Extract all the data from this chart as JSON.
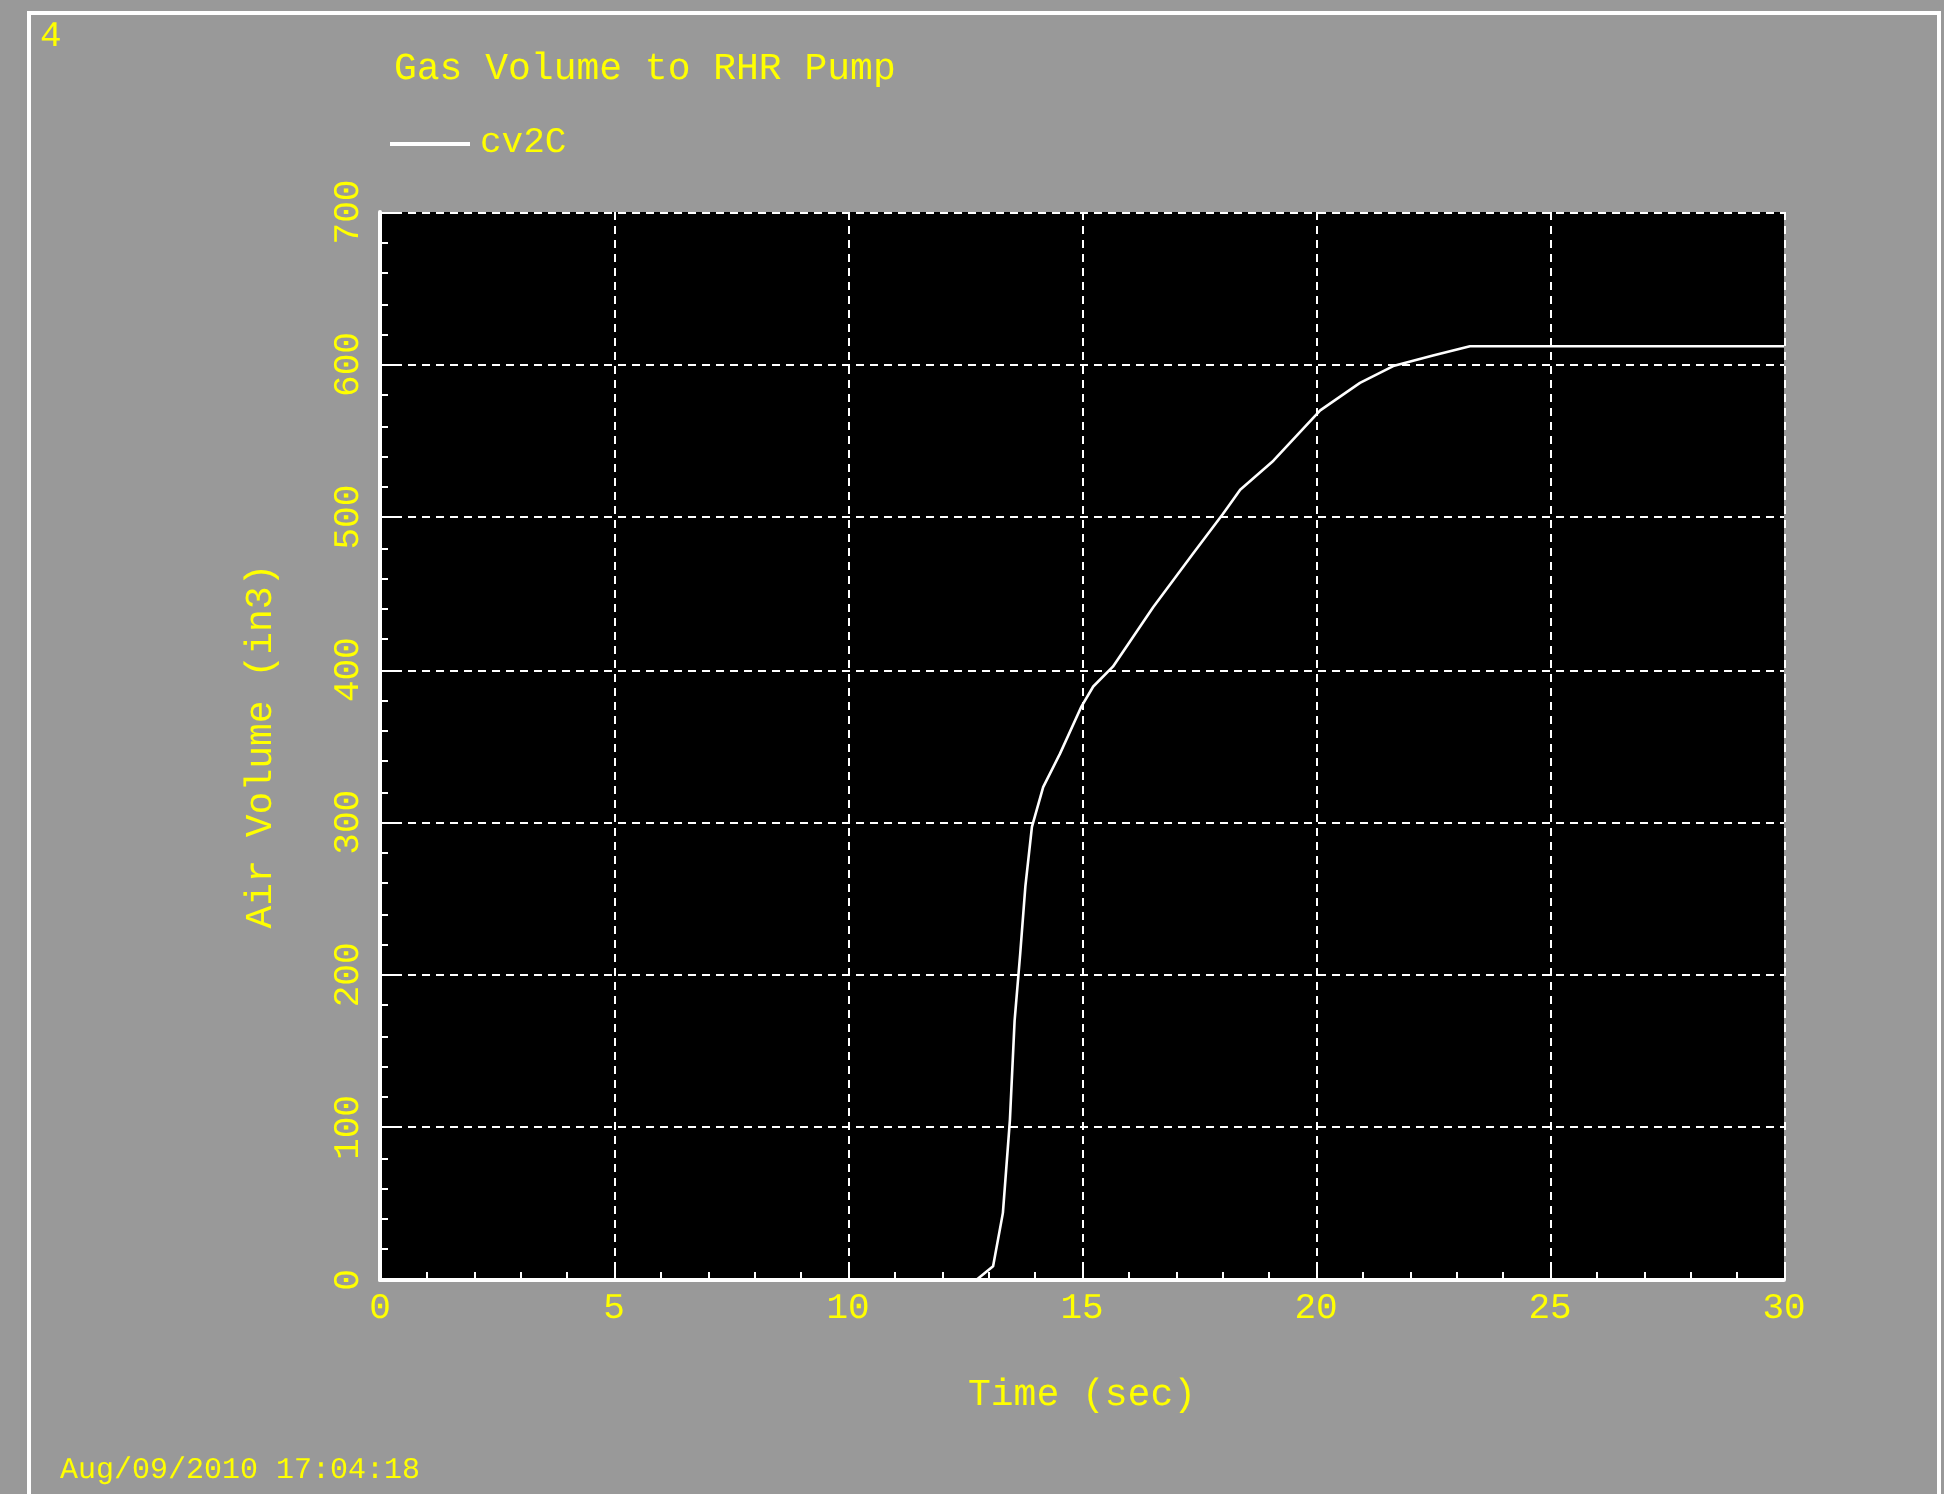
{
  "chart_data": {
    "type": "line",
    "title": "Gas Volume to RHR Pump",
    "xlabel": "Time (sec)",
    "ylabel": "Air Volume (in3)",
    "annotations": [
      "4",
      "Aug/09/2010 17:04:18"
    ],
    "series": [
      {
        "name": "cv2C",
        "color": "#ffffff",
        "x": [
          0,
          12.74,
          13.1,
          13.31,
          13.46,
          13.56,
          13.68,
          13.79,
          13.93,
          14.17,
          14.53,
          14.99,
          15.24,
          15.66,
          16.52,
          17.37,
          18.01,
          18.38,
          19.09,
          20.09,
          20.94,
          21.65,
          22.5,
          23.29,
          30
        ],
        "values": [
          0,
          0,
          9,
          44,
          105,
          170,
          214,
          258,
          297,
          323,
          345,
          376,
          389,
          402,
          441,
          476,
          502,
          518,
          537,
          570,
          588,
          599,
          606,
          612,
          612
        ]
      }
    ],
    "xlim": [
      0,
      30
    ],
    "xticks": [
      0,
      5,
      10,
      15,
      20,
      25,
      30
    ],
    "ylim": [
      0,
      700
    ],
    "yticks": [
      0,
      100,
      200,
      300,
      400,
      500,
      600,
      700
    ],
    "grid": true,
    "legend": "top left",
    "marker": "none",
    "line_style": "solid"
  }
}
